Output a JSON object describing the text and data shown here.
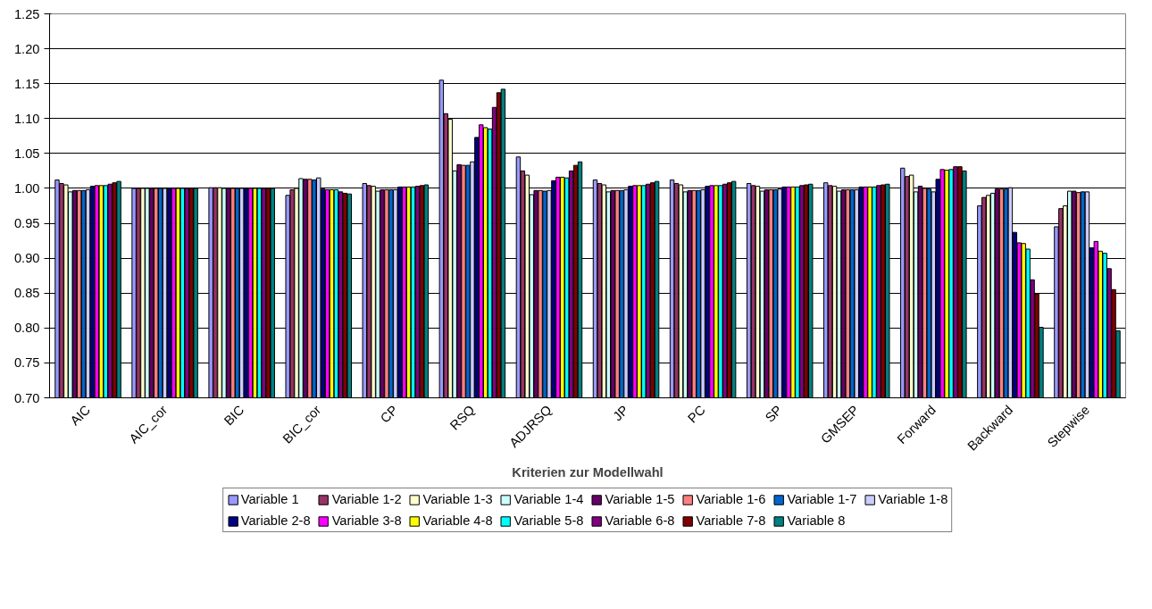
{
  "chart_data": {
    "type": "bar",
    "xlabel": "Kriterien zur Modellwahl",
    "categories": [
      "AIC",
      "AIC_cor",
      "BIC",
      "BIC_cor",
      "CP",
      "RSQ",
      "ADJRSQ",
      "JP",
      "PC",
      "SP",
      "GMSEP",
      "Forward",
      "Backward",
      "Stepwise"
    ],
    "ylim": [
      0.7,
      1.25
    ],
    "yticks": [
      {
        "value": 0.7,
        "label": "0.70"
      },
      {
        "value": 0.75,
        "label": "0.75"
      },
      {
        "value": 0.8,
        "label": "0.80"
      },
      {
        "value": 0.85,
        "label": "0.85"
      },
      {
        "value": 0.9,
        "label": "0.90"
      },
      {
        "value": 0.95,
        "label": "0.95"
      },
      {
        "value": 1.0,
        "label": "1.00"
      },
      {
        "value": 1.05,
        "label": "1.05"
      },
      {
        "value": 1.1,
        "label": "1.10"
      },
      {
        "value": 1.15,
        "label": "1.15"
      },
      {
        "value": 1.2,
        "label": "1.20"
      },
      {
        "value": 1.25,
        "label": "1.25"
      }
    ],
    "grid": "y",
    "legend": "bottom",
    "series": [
      {
        "name": "Variable 1",
        "color": "#9999ff",
        "values": [
          1.012,
          1.0,
          1.001,
          0.99,
          1.007,
          1.155,
          1.045,
          1.012,
          1.012,
          1.007,
          1.008,
          1.029,
          0.975,
          0.945
        ]
      },
      {
        "name": "Variable 1-2",
        "color": "#993366",
        "values": [
          1.007,
          1.0,
          1.001,
          0.998,
          1.004,
          1.107,
          1.025,
          1.007,
          1.007,
          1.004,
          1.004,
          1.017,
          0.987,
          0.971
        ]
      },
      {
        "name": "Variable 1-3",
        "color": "#ffffcc",
        "values": [
          1.005,
          1.0,
          1.001,
          1.0,
          1.003,
          1.099,
          1.019,
          1.005,
          1.005,
          1.003,
          1.003,
          1.019,
          0.99,
          0.975
        ]
      },
      {
        "name": "Variable 1-4",
        "color": "#ccffff",
        "values": [
          0.995,
          1.0,
          1.0,
          1.014,
          0.996,
          1.025,
          0.991,
          0.995,
          0.995,
          0.996,
          0.996,
          0.995,
          0.993,
          0.996
        ]
      },
      {
        "name": "Variable 1-5",
        "color": "#660066",
        "values": [
          0.997,
          1.0,
          1.0,
          1.013,
          0.998,
          1.034,
          0.997,
          0.997,
          0.997,
          0.998,
          0.998,
          1.003,
          0.999,
          0.996
        ]
      },
      {
        "name": "Variable 1-6",
        "color": "#ff8080",
        "values": [
          0.997,
          1.0,
          1.0,
          1.013,
          0.998,
          1.033,
          0.997,
          0.997,
          0.997,
          0.998,
          0.998,
          1.0,
          0.999,
          0.994
        ]
      },
      {
        "name": "Variable 1-7",
        "color": "#0066cc",
        "values": [
          0.997,
          1.0,
          1.0,
          1.012,
          0.998,
          1.033,
          0.996,
          0.997,
          0.997,
          0.998,
          0.998,
          0.999,
          0.999,
          0.995
        ]
      },
      {
        "name": "Variable 1-8",
        "color": "#ccccff",
        "values": [
          0.998,
          1.0,
          1.0,
          1.015,
          0.998,
          1.038,
          0.997,
          0.998,
          0.998,
          0.999,
          0.998,
          0.995,
          1.001,
          0.995
        ]
      },
      {
        "name": "Variable 2-8",
        "color": "#000080",
        "values": [
          1.003,
          1.0,
          1.0,
          0.999,
          1.002,
          1.073,
          1.011,
          1.003,
          1.003,
          1.002,
          1.002,
          1.013,
          0.937,
          0.915
        ]
      },
      {
        "name": "Variable 3-8",
        "color": "#ff00ff",
        "values": [
          1.004,
          1.0,
          1.0,
          0.998,
          1.002,
          1.091,
          1.016,
          1.004,
          1.004,
          1.002,
          1.002,
          1.027,
          0.922,
          0.924
        ]
      },
      {
        "name": "Variable 4-8",
        "color": "#ffff00",
        "values": [
          1.004,
          1.0,
          1.0,
          0.998,
          1.002,
          1.087,
          1.016,
          1.004,
          1.004,
          1.002,
          1.002,
          1.026,
          0.921,
          0.91
        ]
      },
      {
        "name": "Variable 5-8",
        "color": "#00ffff",
        "values": [
          1.004,
          1.0,
          1.0,
          0.998,
          1.002,
          1.085,
          1.015,
          1.004,
          1.004,
          1.002,
          1.002,
          1.027,
          0.913,
          0.907
        ]
      },
      {
        "name": "Variable 6-8",
        "color": "#800080",
        "values": [
          1.006,
          1.0,
          1.0,
          0.995,
          1.003,
          1.116,
          1.025,
          1.006,
          1.006,
          1.004,
          1.004,
          1.031,
          0.869,
          0.885
        ]
      },
      {
        "name": "Variable 7-8",
        "color": "#800000",
        "values": [
          1.008,
          1.0,
          1.0,
          0.993,
          1.004,
          1.137,
          1.033,
          1.008,
          1.008,
          1.005,
          1.005,
          1.031,
          0.849,
          0.855
        ]
      },
      {
        "name": "Variable 8",
        "color": "#008080",
        "values": [
          1.01,
          1.0,
          1.0,
          0.992,
          1.005,
          1.142,
          1.038,
          1.01,
          1.01,
          1.006,
          1.006,
          1.025,
          0.801,
          0.796
        ]
      }
    ]
  }
}
